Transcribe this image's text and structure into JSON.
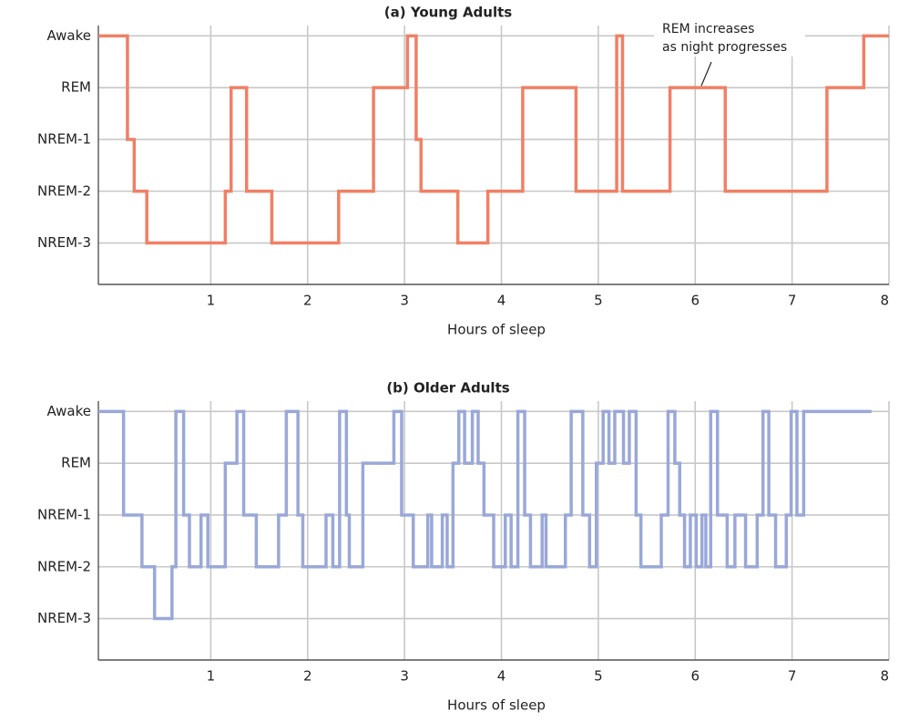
{
  "chart_data": [
    {
      "type": "line",
      "step": "post",
      "title": "(a) Young Adults",
      "xlabel": "Hours of sleep",
      "color": "#f08065",
      "grid": true,
      "x": [
        -0.16,
        0.14,
        0.21,
        0.34,
        1.15,
        1.21,
        1.37,
        1.63,
        2.32,
        2.68,
        3.03,
        3.12,
        3.17,
        3.55,
        3.86,
        4.22,
        4.77,
        5.19,
        5.25,
        5.74,
        6.31,
        7.36,
        7.74,
        8.0
      ],
      "values": [
        4,
        2,
        1,
        0,
        1,
        3,
        1,
        0,
        1,
        3,
        4,
        2,
        1,
        0,
        1,
        3,
        1,
        4,
        1,
        3,
        1,
        3,
        4,
        4
      ],
      "xlim": [
        -0.16,
        8
      ],
      "xticks": [
        1,
        2,
        3,
        4,
        5,
        6,
        7,
        8
      ],
      "ylim": [
        -0.8,
        4.2
      ],
      "yticks": [
        {
          "value": 4,
          "label": "Awake"
        },
        {
          "value": 3,
          "label": "REM"
        },
        {
          "value": 2,
          "label": "NREM-1"
        },
        {
          "value": 1,
          "label": "NREM-2"
        },
        {
          "value": 0,
          "label": "NREM-3"
        }
      ],
      "annotations": [
        "REM increases",
        "as night progresses"
      ]
    },
    {
      "type": "line",
      "step": "post",
      "title": "(b) Older Adults",
      "xlabel": "Hours of sleep",
      "color": "#9aa8d8",
      "grid": true,
      "x": [
        -0.16,
        0.1,
        0.29,
        0.42,
        0.6,
        0.64,
        0.72,
        0.78,
        0.9,
        0.97,
        1.15,
        1.27,
        1.34,
        1.47,
        1.7,
        1.78,
        1.9,
        1.95,
        2.19,
        2.26,
        2.33,
        2.4,
        2.43,
        2.57,
        2.89,
        2.97,
        3.09,
        3.24,
        3.28,
        3.39,
        3.44,
        3.5,
        3.56,
        3.62,
        3.7,
        3.76,
        3.82,
        3.92,
        4.04,
        4.1,
        4.17,
        4.24,
        4.3,
        4.42,
        4.46,
        4.66,
        4.72,
        4.84,
        4.91,
        4.98,
        5.05,
        5.11,
        5.17,
        5.26,
        5.32,
        5.39,
        5.44,
        5.65,
        5.72,
        5.79,
        5.84,
        5.89,
        5.95,
        6.01,
        6.07,
        6.11,
        6.16,
        6.23,
        6.33,
        6.41,
        6.52,
        6.64,
        6.7,
        6.76,
        6.83,
        6.94,
        6.99,
        7.05,
        7.12,
        7.82
      ],
      "values": [
        4,
        2,
        1,
        0,
        1,
        4,
        2,
        1,
        2,
        1,
        3,
        4,
        2,
        1,
        2,
        4,
        2,
        1,
        2,
        1,
        4,
        2,
        1,
        3,
        4,
        2,
        1,
        2,
        1,
        2,
        1,
        3,
        4,
        3,
        4,
        3,
        2,
        1,
        2,
        1,
        4,
        2,
        1,
        2,
        1,
        2,
        4,
        2,
        1,
        3,
        4,
        3,
        4,
        3,
        4,
        2,
        1,
        2,
        4,
        3,
        2,
        1,
        2,
        1,
        2,
        1,
        4,
        2,
        1,
        2,
        1,
        2,
        4,
        2,
        1,
        2,
        4,
        2,
        4,
        4
      ],
      "xlim": [
        -0.16,
        8
      ],
      "xticks": [
        1,
        2,
        3,
        4,
        5,
        6,
        7,
        8
      ],
      "ylim": [
        -0.8,
        4.2
      ],
      "yticks": [
        {
          "value": 4,
          "label": "Awake"
        },
        {
          "value": 3,
          "label": "REM"
        },
        {
          "value": 2,
          "label": "NREM-1"
        },
        {
          "value": 1,
          "label": "NREM-2"
        },
        {
          "value": 0,
          "label": "NREM-3"
        }
      ]
    }
  ]
}
